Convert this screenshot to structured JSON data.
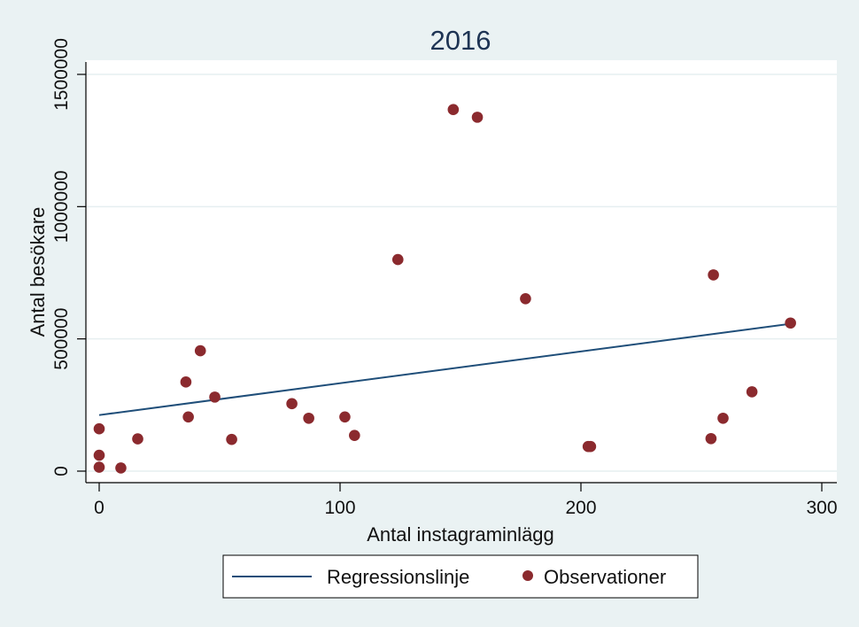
{
  "chart_data": {
    "type": "scatter",
    "title": "2016",
    "xlabel": "Antal instagraminlägg",
    "ylabel": "Antal besökare",
    "xlim": [
      -5,
      305
    ],
    "ylim": [
      -10000,
      1540000
    ],
    "xticks": [
      0,
      100,
      200,
      300
    ],
    "xtick_labels": [
      "0",
      "100",
      "200",
      "300"
    ],
    "yticks": [
      0,
      500000,
      1000000,
      1500000
    ],
    "ytick_labels": [
      "0",
      "500000",
      "1000000",
      "1500000"
    ],
    "grid": true,
    "legend_position": "bottom",
    "series": [
      {
        "name": "Regressionslinje",
        "kind": "line",
        "color": "#1f4e79",
        "x": [
          0,
          287
        ],
        "y": [
          212000,
          557000
        ]
      },
      {
        "name": "Observationer",
        "kind": "scatter",
        "color": "#8b2a2e",
        "x": [
          0,
          0,
          0,
          9,
          16,
          36,
          37,
          42,
          48,
          55,
          80,
          87,
          102,
          106,
          124,
          147,
          157,
          177,
          203,
          204,
          254,
          255,
          259,
          271,
          287
        ],
        "y": [
          160000,
          60000,
          15000,
          12000,
          122000,
          337000,
          205000,
          455000,
          280000,
          120000,
          255000,
          200000,
          205000,
          135000,
          800000,
          1367000,
          1338000,
          652000,
          93000,
          93000,
          123000,
          742000,
          200000,
          300000,
          560000
        ]
      }
    ]
  },
  "colors": {
    "outer_background": "#eaf2f3",
    "plot_background": "#ffffff",
    "grid": "#e6eff0",
    "axis": "#000000",
    "title": "#1e3454"
  }
}
